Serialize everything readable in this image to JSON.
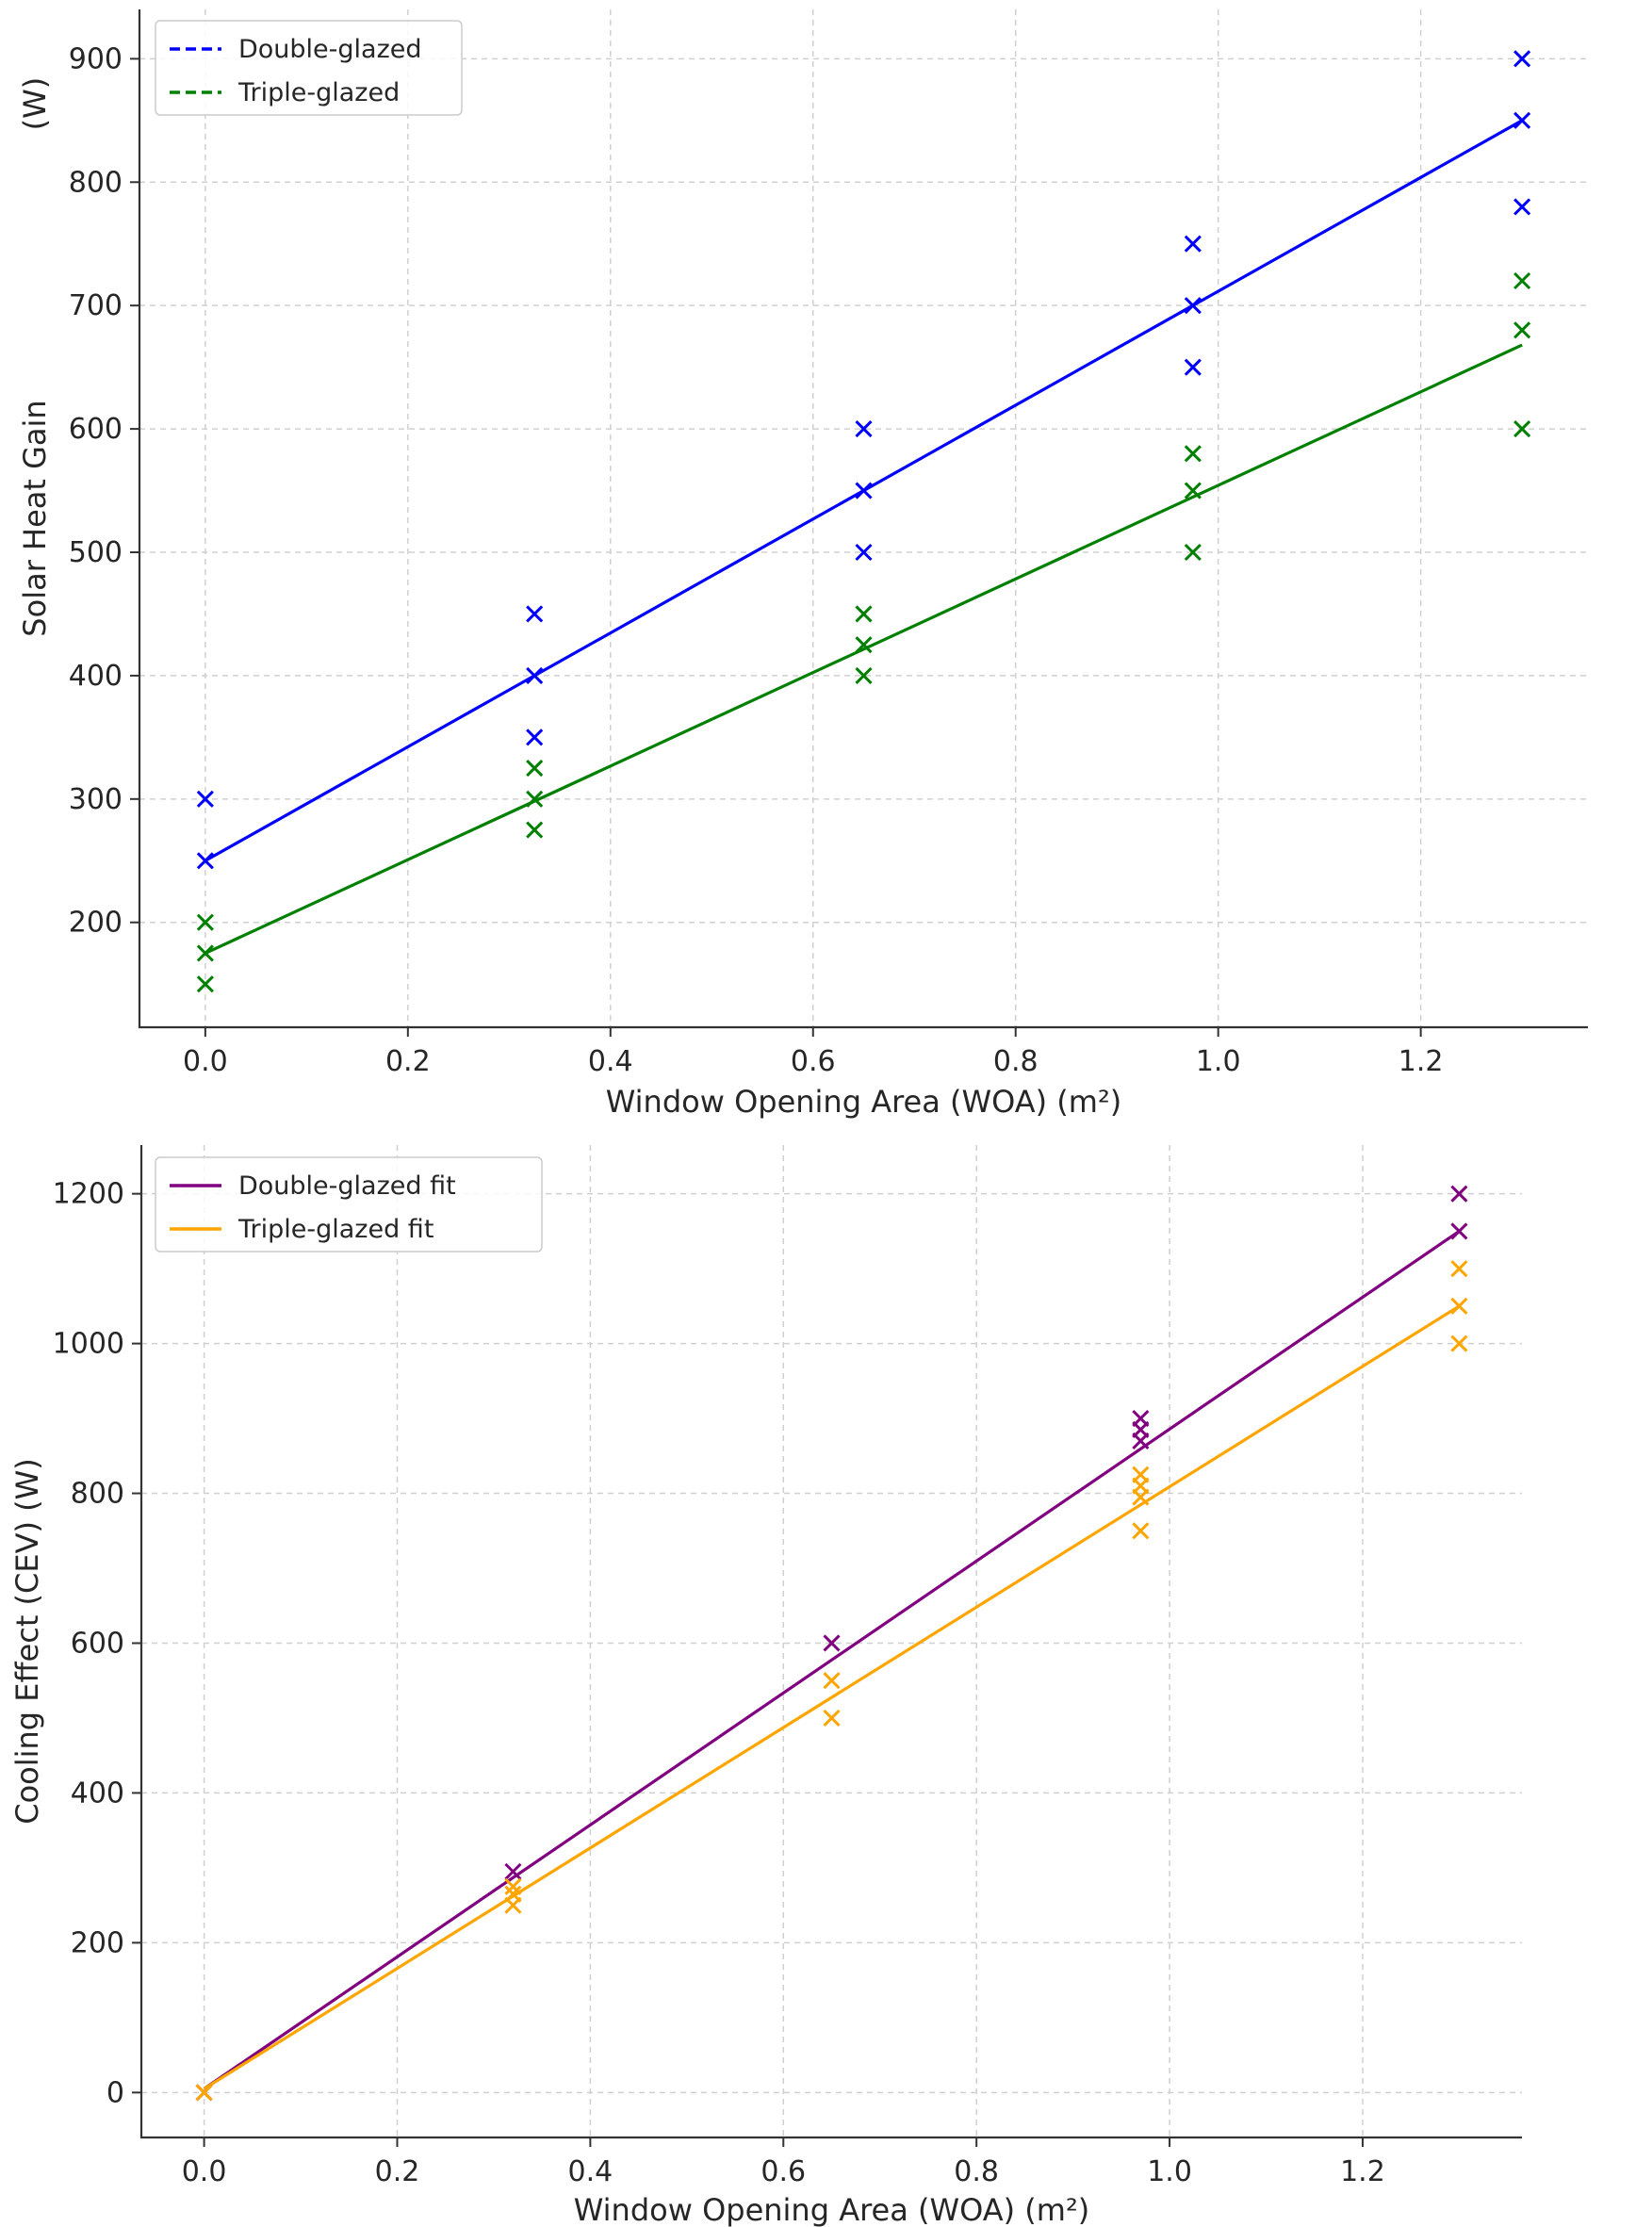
{
  "chart_data": [
    {
      "type": "scatter",
      "xlabel": "Window Opening Area (WOA) (m²)",
      "ylabel": "Solar Heat Gain\n(W)",
      "xlim": [
        -0.065,
        1.365
      ],
      "ylim": [
        115,
        940
      ],
      "xticks": [
        "0.0",
        "0.2",
        "0.4",
        "0.6",
        "0.8",
        "1.0",
        "1.2"
      ],
      "yticks": [
        "200",
        "300",
        "400",
        "500",
        "600",
        "700",
        "800",
        "900"
      ],
      "grid": true,
      "legend_position": "top-left",
      "legend": [
        {
          "label": "Double-glazed",
          "color": "#0000ff",
          "style": "dashed"
        },
        {
          "label": "Triple-glazed",
          "color": "#008000",
          "style": "dashed"
        }
      ],
      "series": [
        {
          "color": "#0000ff",
          "x": [
            0,
            0,
            0.325,
            0.325,
            0.325,
            0.65,
            0.65,
            0.65,
            0.975,
            0.975,
            0.975,
            1.3,
            1.3,
            1.3
          ],
          "y": [
            250,
            300,
            350,
            400,
            450,
            500,
            550,
            600,
            650,
            700,
            750,
            780,
            850,
            900
          ],
          "fit": {
            "x": [
              0,
              1.3
            ],
            "y": [
              250,
              850
            ]
          }
        },
        {
          "color": "#008000",
          "x": [
            0,
            0,
            0,
            0.325,
            0.325,
            0.325,
            0.65,
            0.65,
            0.65,
            0.975,
            0.975,
            0.975,
            1.3,
            1.3,
            1.3
          ],
          "y": [
            150,
            175,
            200,
            275,
            300,
            325,
            400,
            425,
            450,
            500,
            550,
            580,
            600,
            680,
            720
          ],
          "fit": {
            "x": [
              0,
              1.3
            ],
            "y": [
              175,
              668
            ]
          }
        }
      ]
    },
    {
      "type": "scatter",
      "xlabel": "Window Opening Area (WOA) (m²)",
      "ylabel": "Cooling Effect (CEV) (W)",
      "xlim": [
        -0.065,
        1.365
      ],
      "ylim": [
        -60,
        1265
      ],
      "xticks": [
        "0.0",
        "0.2",
        "0.4",
        "0.6",
        "0.8",
        "1.0",
        "1.2"
      ],
      "yticks": [
        "0",
        "200",
        "400",
        "600",
        "800",
        "1000",
        "1200"
      ],
      "grid": true,
      "legend_position": "top-left",
      "legend": [
        {
          "label": "Double-glazed fit",
          "color": "#800080",
          "style": "solid"
        },
        {
          "label": "Triple-glazed fit",
          "color": "#ffa500",
          "style": "solid"
        }
      ],
      "series": [
        {
          "color": "#800080",
          "x": [
            0,
            0.32,
            0.65,
            0.97,
            0.97,
            0.97,
            1.3,
            1.3
          ],
          "y": [
            0,
            295,
            600,
            870,
            885,
            900,
            1150,
            1200
          ],
          "fit": {
            "x": [
              0,
              1.3
            ],
            "y": [
              5,
              1150
            ]
          }
        },
        {
          "color": "#ffa500",
          "x": [
            0,
            0.32,
            0.32,
            0.32,
            0.65,
            0.65,
            0.97,
            0.97,
            0.97,
            0.97,
            1.3,
            1.3,
            1.3
          ],
          "y": [
            0,
            250,
            265,
            275,
            500,
            550,
            750,
            795,
            810,
            825,
            1000,
            1050,
            1100
          ],
          "fit": {
            "x": [
              0,
              1.3
            ],
            "y": [
              5,
              1050
            ]
          }
        }
      ]
    }
  ]
}
